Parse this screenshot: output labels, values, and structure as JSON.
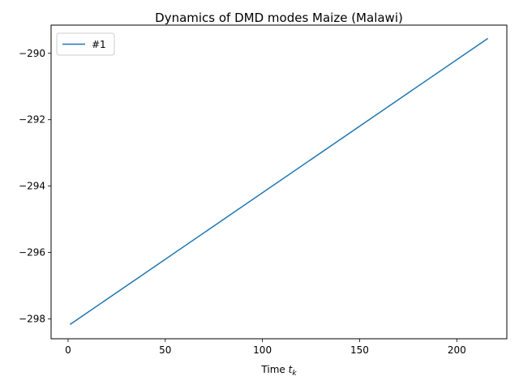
{
  "chart_data": {
    "type": "line",
    "title": "Dynamics of DMD modes Maize (Malawi)",
    "xlabel": "Time",
    "xlabel_sub": "k",
    "ylabel": "",
    "xlim": [
      -8.75,
      225.75
    ],
    "ylim": [
      -298.6,
      -289.15
    ],
    "xticks": [
      0,
      50,
      100,
      150,
      200
    ],
    "yticks": [
      -298,
      -296,
      -294,
      -292,
      -290
    ],
    "ytick_labels": [
      "−298",
      "−296",
      "−294",
      "−292",
      "−290"
    ],
    "grid": false,
    "legend_position": "top-left",
    "series": [
      {
        "name": "#1",
        "color": "#1f77b4",
        "x": [
          1,
          216
        ],
        "y": [
          -298.17,
          -289.55
        ]
      }
    ]
  }
}
